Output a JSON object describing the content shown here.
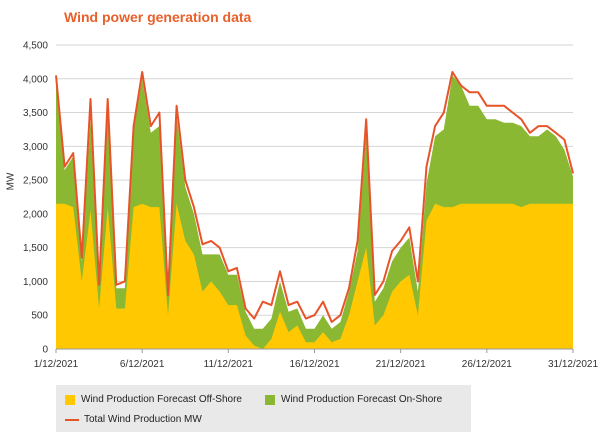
{
  "chart_data": {
    "type": "area",
    "title": "Wind power generation data",
    "ylabel": "MW",
    "xlabel": "",
    "ylim": [
      0,
      4500
    ],
    "yticks": [
      "0",
      "500",
      "1,000",
      "1,500",
      "2,000",
      "2,500",
      "3,000",
      "3,500",
      "4,000",
      "4,500"
    ],
    "xticks": [
      "1/12/2021",
      "6/12/2021",
      "11/12/2021",
      "16/12/2021",
      "21/12/2021",
      "26/12/2021",
      "31/12/2021"
    ],
    "xlim": [
      1,
      31
    ],
    "grid": "horizontal",
    "legend_position": "bottom",
    "x": [
      1,
      1.5,
      2,
      2.5,
      3,
      3.5,
      4,
      4.5,
      5,
      5.5,
      6,
      6.5,
      7,
      7.5,
      8,
      8.5,
      9,
      9.5,
      10,
      10.5,
      11,
      11.5,
      12,
      12.5,
      13,
      13.5,
      14,
      14.5,
      15,
      15.5,
      16,
      16.5,
      17,
      17.5,
      18,
      18.5,
      19,
      19.5,
      20,
      20.5,
      21,
      21.5,
      22,
      22.5,
      23,
      23.5,
      24,
      24.5,
      25,
      25.5,
      26,
      26.5,
      27,
      27.5,
      28,
      28.5,
      29,
      29.5,
      30,
      30.5,
      31
    ],
    "series": [
      {
        "name": "Wind Production Forecast Off-Shore",
        "color": "#ffc800",
        "values": [
          2150,
          2150,
          2100,
          1000,
          2050,
          600,
          2100,
          600,
          600,
          2100,
          2150,
          2100,
          2100,
          500,
          2150,
          1600,
          1400,
          850,
          1000,
          850,
          650,
          650,
          200,
          50,
          0,
          150,
          550,
          250,
          350,
          100,
          100,
          250,
          100,
          150,
          500,
          1000,
          1500,
          350,
          500,
          850,
          1000,
          1100,
          500,
          1900,
          2150,
          2100,
          2100,
          2150,
          2150,
          2150,
          2150,
          2150,
          2150,
          2150,
          2100,
          2150,
          2150,
          2150,
          2150,
          2150,
          2150
        ]
      },
      {
        "name": "Wind Production Forecast On-Shore",
        "color": "#8ab832",
        "values": [
          1850,
          500,
          750,
          300,
          1350,
          300,
          1450,
          300,
          300,
          1150,
          1850,
          1100,
          1200,
          300,
          1300,
          800,
          600,
          550,
          400,
          550,
          450,
          450,
          350,
          250,
          300,
          300,
          450,
          300,
          250,
          200,
          200,
          250,
          200,
          250,
          350,
          450,
          1700,
          350,
          400,
          450,
          500,
          550,
          350,
          550,
          1000,
          1150,
          1950,
          1750,
          1450,
          1450,
          1250,
          1250,
          1200,
          1200,
          1200,
          1000,
          1000,
          1100,
          1000,
          800,
          400
        ]
      },
      {
        "name": "Total Wind Production MW",
        "color": "#e8542a",
        "values": [
          4050,
          2700,
          2900,
          1350,
          3700,
          950,
          3700,
          950,
          1000,
          3300,
          4100,
          3300,
          3500,
          800,
          3600,
          2500,
          2100,
          1550,
          1600,
          1500,
          1150,
          1200,
          600,
          450,
          700,
          650,
          1150,
          650,
          700,
          450,
          500,
          700,
          400,
          500,
          900,
          1600,
          3400,
          800,
          1000,
          1450,
          1600,
          1800,
          1000,
          2700,
          3300,
          3500,
          4100,
          3900,
          3800,
          3800,
          3600,
          3600,
          3600,
          3500,
          3400,
          3200,
          3300,
          3300,
          3200,
          3100,
          2600
        ]
      }
    ]
  },
  "legend": {
    "items": [
      "Wind Production Forecast Off-Shore",
      "Wind Production Forecast On-Shore",
      "Total Wind Production MW"
    ]
  },
  "colors": {
    "offshore": "#ffc800",
    "onshore": "#8ab832",
    "total": "#e8542a",
    "title": "#e8602a"
  }
}
